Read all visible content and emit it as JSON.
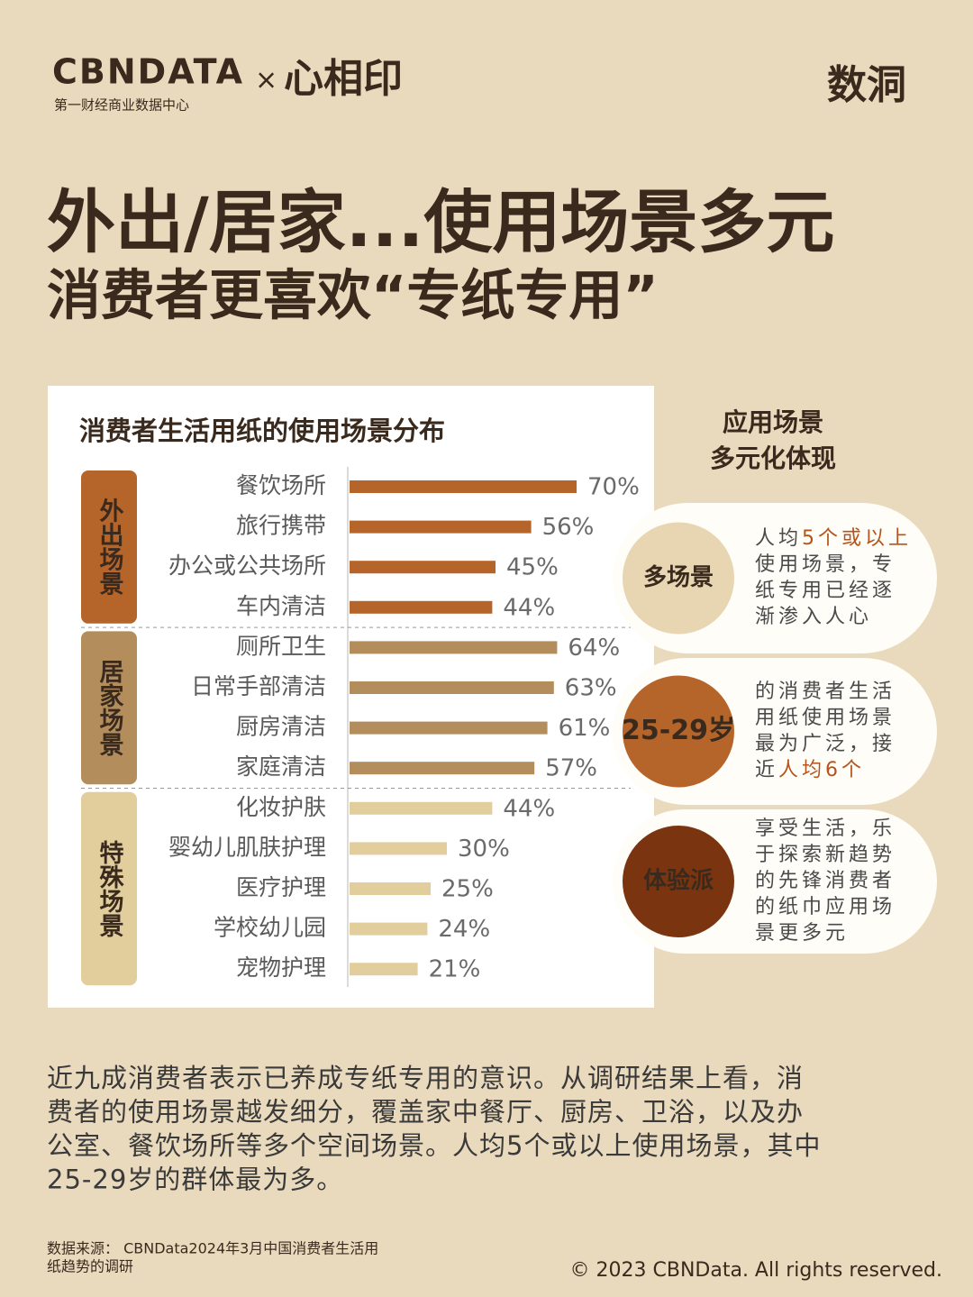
{
  "header": {
    "logo": "CBNDATA",
    "logo_sub": "第一财经商业数据中心",
    "times": "×",
    "partner": "心相印",
    "brand": "数洞"
  },
  "title": {
    "line1": "外出/居家...使用场景多元",
    "line2": "消费者更喜欢“专纸专用”"
  },
  "chart_data": {
    "type": "bar",
    "orientation": "horizontal",
    "title": "消费者生活用纸的使用场景分布",
    "groups": [
      {
        "name": "外出场景",
        "color": "#b5642a",
        "categories": [
          "餐饮场所",
          "旅行携带",
          "办公或公共场所",
          "车内清洁"
        ],
        "values": [
          70,
          56,
          45,
          44
        ],
        "value_labels": [
          "70%",
          "56%",
          "45%",
          "44%"
        ]
      },
      {
        "name": "居家场景",
        "color": "#b38d5c",
        "categories": [
          "厕所卫生",
          "日常手部清洁",
          "厨房清洁",
          "家庭清洁"
        ],
        "values": [
          64,
          63,
          61,
          57
        ],
        "value_labels": [
          "64%",
          "63%",
          "61%",
          "57%"
        ]
      },
      {
        "name": "特殊场景",
        "color": "#e2cd9d",
        "categories": [
          "化妆护肤",
          "婴幼儿肌肤护理",
          "医疗护理",
          "学校幼儿园",
          "宠物护理"
        ],
        "values": [
          44,
          30,
          25,
          24,
          21
        ],
        "value_labels": [
          "44%",
          "30%",
          "25%",
          "24%",
          "21%"
        ]
      }
    ]
  },
  "side": {
    "heading": [
      "应用场景",
      "多元化体现"
    ],
    "cards": [
      {
        "badge": "多场景",
        "badge_color": "#e8d6b2",
        "badge_text_color": "#5a3a1e",
        "lines": [
          [
            {
              "text": "人均"
            },
            {
              "text": "5个或以上",
              "em": true
            }
          ],
          [
            {
              "text": "使用场景，专"
            }
          ],
          [
            {
              "text": "纸专用已经逐"
            }
          ],
          [
            {
              "text": "渐渗入人心"
            }
          ]
        ]
      },
      {
        "badge": "25-29岁",
        "badge_color": "#b5642a",
        "badge_text_color": "#ffffff",
        "lines": [
          [
            {
              "text": "的消费者生活"
            }
          ],
          [
            {
              "text": "用纸使用场景"
            }
          ],
          [
            {
              "text": "最为广泛，接"
            }
          ],
          [
            {
              "text": "近"
            },
            {
              "text": "人均6个",
              "em": true
            }
          ]
        ]
      },
      {
        "badge": "体验派",
        "badge_color": "#7a3510",
        "badge_text_color": "#ffffff",
        "lines": [
          [
            {
              "text": "享受生活，乐"
            }
          ],
          [
            {
              "text": "于探索新趋势"
            }
          ],
          [
            {
              "text": "的先锋消费者"
            }
          ],
          [
            {
              "text": "的纸巾应用场"
            }
          ],
          [
            {
              "text": "景更多元"
            }
          ]
        ]
      }
    ]
  },
  "body": {
    "lines": [
      "近九成消费者表示已养成专纸专用的意识。从调研结果上看，消",
      "费者的使用场景越发细分，覆盖家中餐厅、厨房、卫浴，以及办",
      "公室、餐饮场所等多个空间场景。人均5个或以上使用场景，其中",
      "25-29岁的群体最为多。"
    ]
  },
  "footer": {
    "source": [
      "数据来源： CBNData2024年3月中国消费者生活用",
      "纸趋势的调研"
    ],
    "copyright": "© 2023 CBNData. All rights reserved."
  }
}
